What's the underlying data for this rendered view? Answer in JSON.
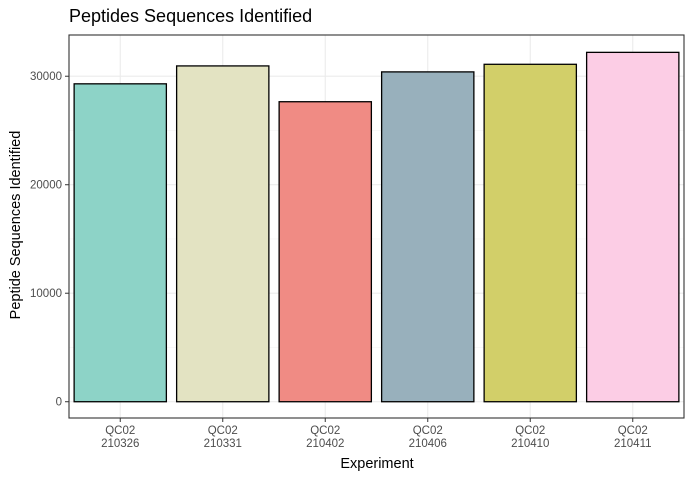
{
  "chart_data": {
    "type": "bar",
    "title": "Peptides Sequences Identified",
    "xlabel": "Experiment",
    "ylabel": "Peptide Sequences Identified",
    "categories": [
      [
        "QC02",
        "210326"
      ],
      [
        "QC02",
        "210331"
      ],
      [
        "QC02",
        "210402"
      ],
      [
        "QC02",
        "210406"
      ],
      [
        "QC02",
        "210410"
      ],
      [
        "QC02",
        "210411"
      ]
    ],
    "values": [
      29300,
      30950,
      27650,
      30400,
      31100,
      32200
    ],
    "colors": [
      "#8dd3c7",
      "#e3e3c2",
      "#f08b84",
      "#98b0bc",
      "#d2cf69",
      "#fccde5"
    ],
    "ylim": [
      -1500,
      33800
    ],
    "yticks": [
      0,
      10000,
      20000,
      30000
    ],
    "ytick_labels": [
      "0",
      "10000",
      "20000",
      "30000"
    ],
    "grid": true,
    "legend": "none"
  }
}
